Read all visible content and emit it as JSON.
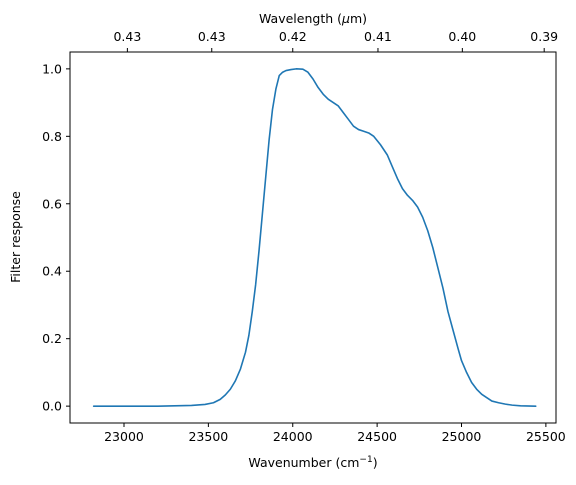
{
  "chart_data": {
    "type": "line",
    "title": "",
    "xlabel_text": "Wavenumber (cm",
    "xlabel_sup": "−1",
    "xlabel_end": ")",
    "ylabel": "Filter response",
    "top_xlabel_prefix": "Wavelength (",
    "top_xlabel_mu": "μ",
    "top_xlabel_suffix": "m)",
    "xlim": [
      22680,
      25560
    ],
    "ylim": [
      -0.05,
      1.05
    ],
    "x_ticks": [
      23000,
      23500,
      24000,
      24500,
      25000,
      25500
    ],
    "x_tick_labels": [
      "23000",
      "23500",
      "24000",
      "24500",
      "25000",
      "25500"
    ],
    "y_ticks": [
      0.0,
      0.2,
      0.4,
      0.6,
      0.8,
      1.0
    ],
    "y_tick_labels": [
      "0.0",
      "0.2",
      "0.4",
      "0.6",
      "0.8",
      "1.0"
    ],
    "top_ticks": [
      23020,
      23520,
      24000,
      24505,
      25005,
      25490
    ],
    "top_tick_labels": [
      "0.43",
      "0.43",
      "0.42",
      "0.41",
      "0.40",
      "0.39"
    ],
    "grid": false,
    "line_color": "#1f77b4",
    "series": [
      {
        "x": [
          22820,
          23000,
          23200,
          23400,
          23480,
          23530,
          23570,
          23600,
          23630,
          23660,
          23690,
          23720,
          23740,
          23760,
          23780,
          23800,
          23820,
          23840,
          23860,
          23880,
          23900,
          23920,
          23940,
          23960,
          23990,
          24020,
          24060,
          24090,
          24120,
          24150,
          24180,
          24210,
          24240,
          24270,
          24300,
          24330,
          24360,
          24390,
          24420,
          24450,
          24480,
          24520,
          24560,
          24590,
          24620,
          24650,
          24680,
          24710,
          24740,
          24770,
          24800,
          24830,
          24860,
          24890,
          24920,
          24950,
          24980,
          25000,
          25030,
          25060,
          25090,
          25120,
          25150,
          25180,
          25220,
          25260,
          25300,
          25350,
          25440
        ],
        "y": [
          0.0,
          0.0,
          0.0,
          0.002,
          0.005,
          0.01,
          0.02,
          0.033,
          0.05,
          0.075,
          0.11,
          0.16,
          0.21,
          0.28,
          0.36,
          0.46,
          0.57,
          0.68,
          0.79,
          0.88,
          0.94,
          0.98,
          0.99,
          0.995,
          0.998,
          1.0,
          0.999,
          0.99,
          0.97,
          0.945,
          0.925,
          0.91,
          0.9,
          0.89,
          0.87,
          0.85,
          0.83,
          0.82,
          0.815,
          0.81,
          0.8,
          0.775,
          0.745,
          0.71,
          0.675,
          0.645,
          0.625,
          0.61,
          0.59,
          0.56,
          0.52,
          0.47,
          0.41,
          0.35,
          0.28,
          0.225,
          0.17,
          0.135,
          0.1,
          0.07,
          0.05,
          0.035,
          0.025,
          0.015,
          0.01,
          0.006,
          0.003,
          0.001,
          0.0
        ]
      }
    ]
  }
}
